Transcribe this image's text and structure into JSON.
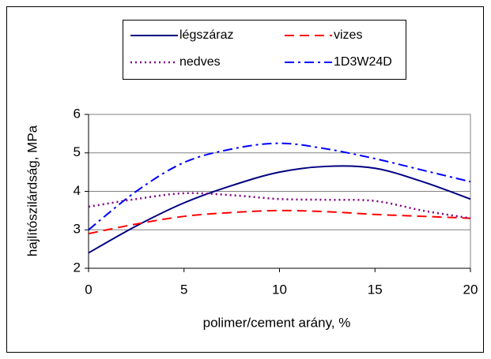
{
  "chart_data": {
    "type": "line",
    "x": [
      0,
      2.5,
      5,
      7.5,
      10,
      12.5,
      15,
      17.5,
      20
    ],
    "series": [
      {
        "name": "légszáraz",
        "color": "#000080",
        "dash": "solid",
        "values": [
          2.4,
          3.1,
          3.7,
          4.15,
          4.5,
          4.65,
          4.6,
          4.25,
          3.8
        ]
      },
      {
        "name": "vizes",
        "color": "#ff0000",
        "dash": "dashed",
        "values": [
          2.9,
          3.15,
          3.35,
          3.45,
          3.5,
          3.47,
          3.4,
          3.35,
          3.3
        ]
      },
      {
        "name": "nedves",
        "color": "#800080",
        "dash": "dotted",
        "values": [
          3.6,
          3.8,
          3.95,
          3.9,
          3.8,
          3.78,
          3.75,
          3.5,
          3.3
        ]
      },
      {
        "name": "1D3W24D",
        "color": "#0000ff",
        "dash": "dashdot",
        "values": [
          3.0,
          4.0,
          4.75,
          5.1,
          5.25,
          5.1,
          4.85,
          4.55,
          4.25
        ]
      }
    ],
    "xlabel": "polimer/cement arány, %",
    "ylabel": "hajlítószilárdság, MPa",
    "xlim": [
      0,
      20
    ],
    "xticks": [
      0,
      5,
      10,
      15,
      20
    ],
    "ylim": [
      2,
      6
    ],
    "yticks": [
      2,
      3,
      4,
      5,
      6
    ],
    "grid": true,
    "legend": "top"
  }
}
